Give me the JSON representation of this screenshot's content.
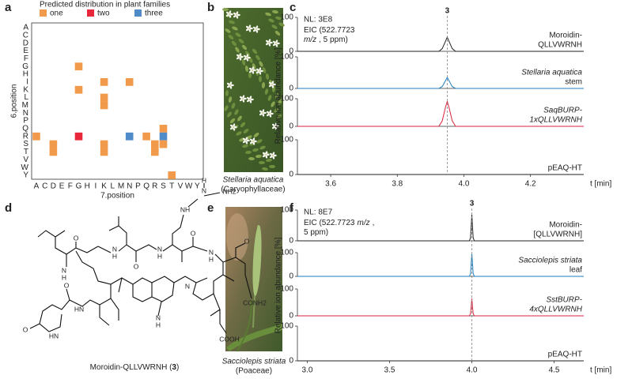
{
  "panel_labels": [
    "a",
    "b",
    "c",
    "d",
    "e",
    "f"
  ],
  "panel_a": {
    "legend_title": "Predicted distribution in plant families",
    "legend": [
      {
        "label": "one",
        "color": "#f29a4b"
      },
      {
        "label": "two",
        "color": "#e8273b"
      },
      {
        "label": "three",
        "color": "#4f8bc9"
      }
    ],
    "x_categories": [
      "A",
      "C",
      "D",
      "E",
      "F",
      "G",
      "H",
      "I",
      "K",
      "L",
      "M",
      "N",
      "P",
      "Q",
      "R",
      "S",
      "T",
      "V",
      "W",
      "Y"
    ],
    "y_categories": [
      "A",
      "C",
      "D",
      "E",
      "F",
      "G",
      "H",
      "I",
      "K",
      "L",
      "M",
      "N",
      "P",
      "Q",
      "R",
      "S",
      "T",
      "V",
      "W",
      "Y"
    ],
    "x_label": "7.position",
    "y_label": "6.position",
    "points": [
      {
        "x": "A",
        "y": "R",
        "group": 0
      },
      {
        "x": "D",
        "y": "S",
        "group": 0
      },
      {
        "x": "D",
        "y": "T",
        "group": 0
      },
      {
        "x": "G",
        "y": "G",
        "group": 0
      },
      {
        "x": "G",
        "y": "K",
        "group": 0
      },
      {
        "x": "G",
        "y": "R",
        "group": 1
      },
      {
        "x": "K",
        "y": "I",
        "group": 0
      },
      {
        "x": "K",
        "y": "L",
        "group": 0
      },
      {
        "x": "K",
        "y": "M",
        "group": 0
      },
      {
        "x": "K",
        "y": "S",
        "group": 0
      },
      {
        "x": "K",
        "y": "T",
        "group": 0
      },
      {
        "x": "N",
        "y": "I",
        "group": 0
      },
      {
        "x": "N",
        "y": "R",
        "group": 2
      },
      {
        "x": "Q",
        "y": "R",
        "group": 0
      },
      {
        "x": "S",
        "y": "Q",
        "group": 0
      },
      {
        "x": "S",
        "y": "R",
        "group": 2
      },
      {
        "x": "R",
        "y": "S",
        "group": 0
      },
      {
        "x": "R",
        "y": "T",
        "group": 0
      },
      {
        "x": "S",
        "y": "S",
        "group": 0
      },
      {
        "x": "T",
        "y": "Y",
        "group": 0
      }
    ]
  },
  "panel_b": {
    "species": "Stellaria aquatica",
    "family": "(Caryophyllaceae)"
  },
  "panel_c": {
    "nl": "NL: 3E8",
    "eic_lines": [
      [
        {
          "text": "EIC (522.7723"
        }
      ],
      [
        {
          "text": "m/z",
          "italic": true
        },
        {
          "text": ", 5 ppm)"
        }
      ]
    ],
    "peak_label": "3",
    "marker_x": 3.95,
    "x_label": "t [min]",
    "y_label": "Relative ion abundance [%]",
    "xlim": [
      3.5,
      4.36
    ],
    "xticks": [
      3.6,
      3.8,
      {
        "value": 4,
        "label": "4.0"
      },
      4.2
    ],
    "ylim": [
      0,
      100
    ],
    "yticks": [
      0,
      100
    ],
    "x": [
      3.5,
      3.925,
      3.935,
      3.945,
      3.95,
      3.955,
      3.965,
      3.975,
      4.36
    ],
    "series": [
      {
        "label_lines": [
          "Moroidin-",
          "QLLVWRNH"
        ],
        "italic_lines": [
          false,
          false
        ],
        "color": "#222222",
        "values": [
          0,
          0,
          8,
          30,
          42,
          30,
          8,
          0,
          0
        ]
      },
      {
        "label_lines": [
          "Stellaria aquatica",
          "stem"
        ],
        "italic_lines": [
          true,
          false
        ],
        "color": "#1f7fc0",
        "values": [
          0,
          0,
          6,
          25,
          35,
          25,
          6,
          0,
          0
        ]
      },
      {
        "label_lines": [
          "SaqBURP-",
          "1xQLLVWRNH"
        ],
        "italic_lines": [
          true,
          true
        ],
        "color": "#d7263d",
        "values": [
          0,
          0,
          20,
          70,
          90,
          70,
          20,
          0,
          0
        ]
      },
      {
        "label_lines": [
          "pEAQ-HT"
        ],
        "italic_lines": [
          false
        ],
        "color": "#222222",
        "values": [
          0,
          0,
          0,
          0,
          0,
          0,
          0,
          0,
          0
        ]
      }
    ]
  },
  "panel_d": {
    "caption": [
      "Moroidin-QLLVWRNH (",
      "3",
      ")"
    ],
    "atom_labels": [
      "H",
      "N",
      "NH2",
      "NH",
      "O",
      "N",
      "H",
      "O",
      "N",
      "H",
      "N",
      "H",
      "O",
      "N",
      "H",
      "O",
      "O",
      "HN",
      "N",
      "H",
      "N",
      "CONH2",
      "O",
      "HN",
      "COOH"
    ]
  },
  "panel_e": {
    "species": "Sacciolepis striata",
    "family": "(Poaceae)"
  },
  "panel_f": {
    "nl": "NL: 8E7",
    "eic_lines": [
      [
        {
          "text": "EIC (522.7723"
        },
        {
          "text": "m/z",
          "italic": true
        },
        {
          "text": ","
        }
      ],
      [
        {
          "text": "5 ppm)"
        }
      ]
    ],
    "peak_label": "3",
    "marker_x": 4.0,
    "x_label": "t [min]",
    "y_label": "Relative ion abundance [%]",
    "xlim": [
      2.94,
      4.68
    ],
    "xticks": [
      {
        "value": 3,
        "label": "3.0"
      },
      3.5,
      {
        "value": 4,
        "label": "4.0"
      },
      4.5
    ],
    "ylim": [
      0,
      100
    ],
    "yticks": [
      0,
      100
    ],
    "x": [
      2.94,
      3.985,
      3.992,
      3.997,
      4.0,
      4.003,
      4.008,
      4.015,
      4.68
    ],
    "series": [
      {
        "label_lines": [
          "Moroidin-",
          "[QLLVWRNH]"
        ],
        "italic_lines": [
          false,
          false
        ],
        "color": "#222222",
        "values": [
          0,
          0,
          10,
          55,
          85,
          55,
          10,
          0,
          0
        ]
      },
      {
        "label_lines": [
          "Sacciolepis striata",
          "leaf"
        ],
        "italic_lines": [
          true,
          false
        ],
        "color": "#1f7fc0",
        "values": [
          0,
          0,
          12,
          65,
          95,
          65,
          12,
          0,
          0
        ]
      },
      {
        "label_lines": [
          "SstBURP-",
          "4xQLLVWRNH"
        ],
        "italic_lines": [
          true,
          true
        ],
        "color": "#d7263d",
        "values": [
          0,
          0,
          8,
          40,
          65,
          40,
          8,
          0,
          0
        ]
      },
      {
        "label_lines": [
          "pEAQ-HT"
        ],
        "italic_lines": [
          false
        ],
        "color": "#222222",
        "values": [
          0,
          0,
          0,
          0,
          0,
          0,
          0,
          0,
          0
        ]
      }
    ]
  }
}
